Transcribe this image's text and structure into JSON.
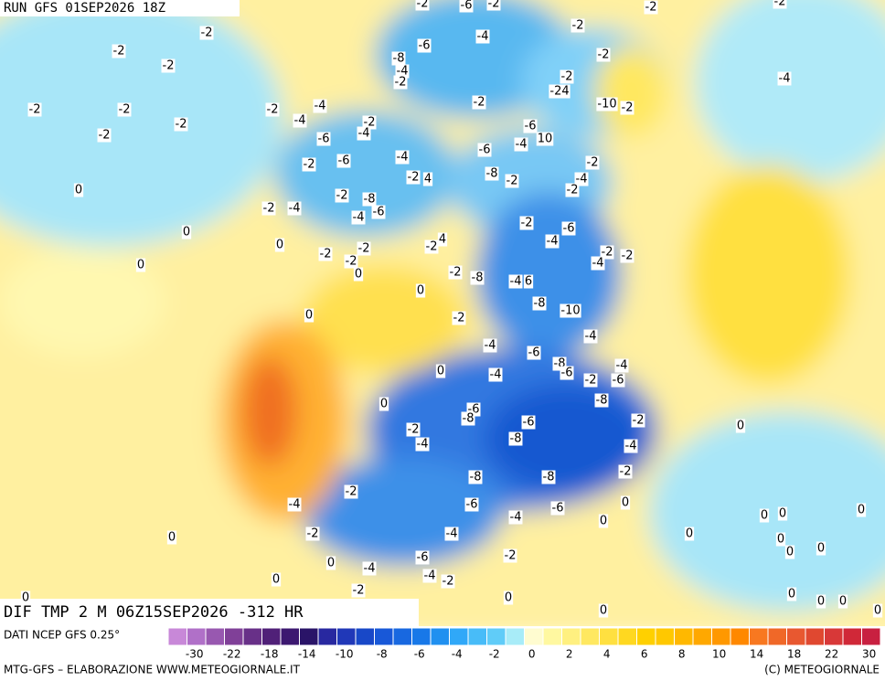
{
  "header": {
    "run": "RUN GFS 01SEP2026 18Z"
  },
  "map": {
    "title": "DIF TMP 2 M 06Z15SEP2026 -312 HR",
    "labels": [
      -2,
      -6,
      -2,
      -2,
      -2,
      -2,
      -2,
      -2,
      -6,
      -4,
      -2,
      -2,
      -8,
      -4,
      -2,
      -24,
      -2,
      -4,
      -2,
      -2,
      -2,
      -2,
      -4,
      -4,
      -2,
      -2,
      -10,
      -2,
      -2,
      -6,
      -4,
      -6,
      -4,
      10,
      -6,
      -2,
      -6,
      -4,
      -2,
      -2,
      4,
      -8,
      -2,
      -4,
      -2,
      0,
      -2,
      -8,
      -2,
      -4,
      -4,
      -6,
      -2,
      -6,
      0,
      -4,
      -2,
      4,
      -2,
      -2,
      -2,
      0,
      -2,
      -2,
      -4,
      0,
      0,
      -2,
      -8,
      -4,
      6,
      0,
      -8,
      -10,
      0,
      -2,
      -4,
      -4,
      -6,
      0,
      -4,
      -8,
      -6,
      -2,
      -4,
      -6,
      0,
      -8,
      -6,
      -8,
      -6,
      -2,
      0,
      -2,
      -4,
      -8,
      -4,
      -2,
      -8,
      -8,
      -2,
      -4,
      -6,
      -6,
      0,
      -4,
      0,
      0,
      0,
      0,
      -2,
      -4,
      0,
      0,
      0,
      0,
      0,
      -6,
      -2,
      0,
      -4,
      -4,
      -2,
      0,
      -2,
      0,
      0,
      0,
      0,
      0,
      0,
      0
    ]
  },
  "colorbar": {
    "source": "DATI NCEP GFS 0.25°",
    "colors": [
      "#c888d8",
      "#b070c8",
      "#9858b0",
      "#804098",
      "#683088",
      "#502078",
      "#3c1870",
      "#2a1468",
      "#2828a0",
      "#2038b8",
      "#1848c8",
      "#1858d8",
      "#1868e0",
      "#1878e8",
      "#2090f0",
      "#30a8f8",
      "#48bcf8",
      "#60ccf8",
      "#a8ecf8",
      "#fffcd0",
      "#fff8a0",
      "#fff080",
      "#ffe860",
      "#ffe040",
      "#ffd820",
      "#ffd000",
      "#ffc800",
      "#ffb800",
      "#ffa800",
      "#ff9800",
      "#ff8800",
      "#f87820",
      "#f06828",
      "#e85830",
      "#e04830",
      "#d83838",
      "#d02838",
      "#c82040"
    ],
    "ticks": [
      -30,
      -22,
      -18,
      -14,
      -10,
      -8,
      -6,
      -4,
      -2,
      0,
      2,
      4,
      6,
      8,
      10,
      14,
      18,
      22,
      30
    ]
  },
  "footer": {
    "left": "MTG-GFS – ELABORAZIONE WWW.METEOGIORNALE.IT",
    "right": "(C) METEOGIORNALE"
  }
}
